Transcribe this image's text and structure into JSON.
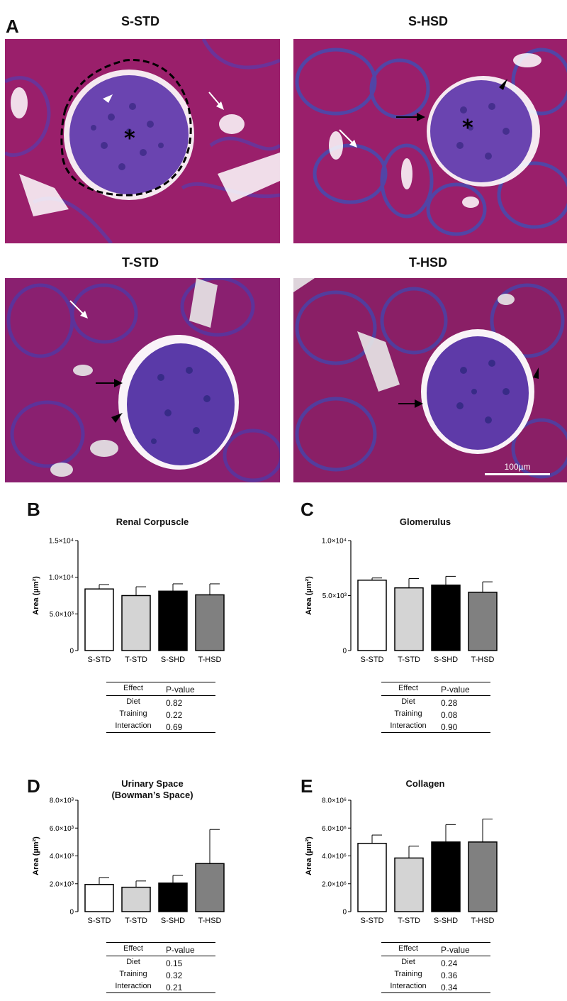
{
  "panel_letters": {
    "a": "A",
    "b": "B",
    "c": "C",
    "d": "D",
    "e": "E"
  },
  "images": [
    {
      "title": "S-STD"
    },
    {
      "title": "S-HSD"
    },
    {
      "title": "T-STD"
    },
    {
      "title": "T-HSD"
    }
  ],
  "scale_bar_label": "100µm",
  "tables": {
    "effect_header": "Effect",
    "pvalue_header": "P-value",
    "effects": [
      "Diet",
      "Training",
      "Interaction"
    ]
  },
  "chart_data": [
    {
      "id": "B",
      "type": "bar",
      "title": "Renal Corpuscle",
      "title_line2": "",
      "ylabel": "Area (µm²)",
      "categories": [
        "S-STD",
        "T-STD",
        "S-SHD",
        "T-HSD"
      ],
      "values": [
        8400,
        7500,
        8100,
        7600
      ],
      "errors": [
        600,
        1200,
        1000,
        1500
      ],
      "ylim": [
        0,
        15000
      ],
      "yticks": [
        0,
        5000,
        10000,
        15000
      ],
      "ytick_labels": [
        "0",
        "5.0×10³",
        "1.0×10⁴",
        "1.5×10⁴"
      ],
      "bar_colors": [
        "#ffffff",
        "#d4d4d4",
        "#000000",
        "#808080"
      ],
      "pvalues": [
        "0.82",
        "0.22",
        "0.69"
      ]
    },
    {
      "id": "C",
      "type": "bar",
      "title": "Glomerulus",
      "title_line2": "",
      "ylabel": "Area (µm²)",
      "categories": [
        "S-STD",
        "T-STD",
        "S-SHD",
        "T-HSD"
      ],
      "values": [
        6400,
        5700,
        5950,
        5300
      ],
      "errors": [
        200,
        850,
        800,
        950
      ],
      "ylim": [
        0,
        10000
      ],
      "yticks": [
        0,
        5000,
        10000
      ],
      "ytick_labels": [
        "0",
        "5.0×10³",
        "1.0×10⁴"
      ],
      "bar_colors": [
        "#ffffff",
        "#d4d4d4",
        "#000000",
        "#808080"
      ],
      "pvalues": [
        "0.28",
        "0.08",
        "0.90"
      ]
    },
    {
      "id": "D",
      "type": "bar",
      "title": "Urinary Space",
      "title_line2": "(Bowman’s Space)",
      "ylabel": "Area (µm²)",
      "categories": [
        "S-STD",
        "T-STD",
        "S-SHD",
        "T-HSD"
      ],
      "values": [
        1950,
        1750,
        2050,
        3450
      ],
      "errors": [
        500,
        450,
        550,
        2450
      ],
      "ylim": [
        0,
        8000
      ],
      "yticks": [
        0,
        2000,
        4000,
        6000,
        8000
      ],
      "ytick_labels": [
        "0",
        "2.0×10³",
        "4.0×10³",
        "6.0×10³",
        "8.0×10³"
      ],
      "bar_colors": [
        "#ffffff",
        "#d4d4d4",
        "#000000",
        "#808080"
      ],
      "pvalues": [
        "0.15",
        "0.32",
        "0.21"
      ]
    },
    {
      "id": "E",
      "type": "bar",
      "title": "Collagen",
      "title_line2": "",
      "ylabel": "Area (µm²)",
      "categories": [
        "S-STD",
        "T-STD",
        "S-SHD",
        "T-HSD"
      ],
      "values": [
        4900000,
        3850000,
        5000000,
        5000000
      ],
      "errors": [
        600000,
        850000,
        1250000,
        1650000
      ],
      "ylim": [
        0,
        8000000
      ],
      "yticks": [
        0,
        2000000,
        4000000,
        6000000,
        8000000
      ],
      "ytick_labels": [
        "0",
        "2.0×10⁶",
        "4.0×10⁶",
        "6.0×10⁶",
        "8.0×10⁶"
      ],
      "bar_colors": [
        "#ffffff",
        "#d4d4d4",
        "#000000",
        "#808080"
      ],
      "pvalues": [
        "0.24",
        "0.36",
        "0.34"
      ]
    }
  ]
}
